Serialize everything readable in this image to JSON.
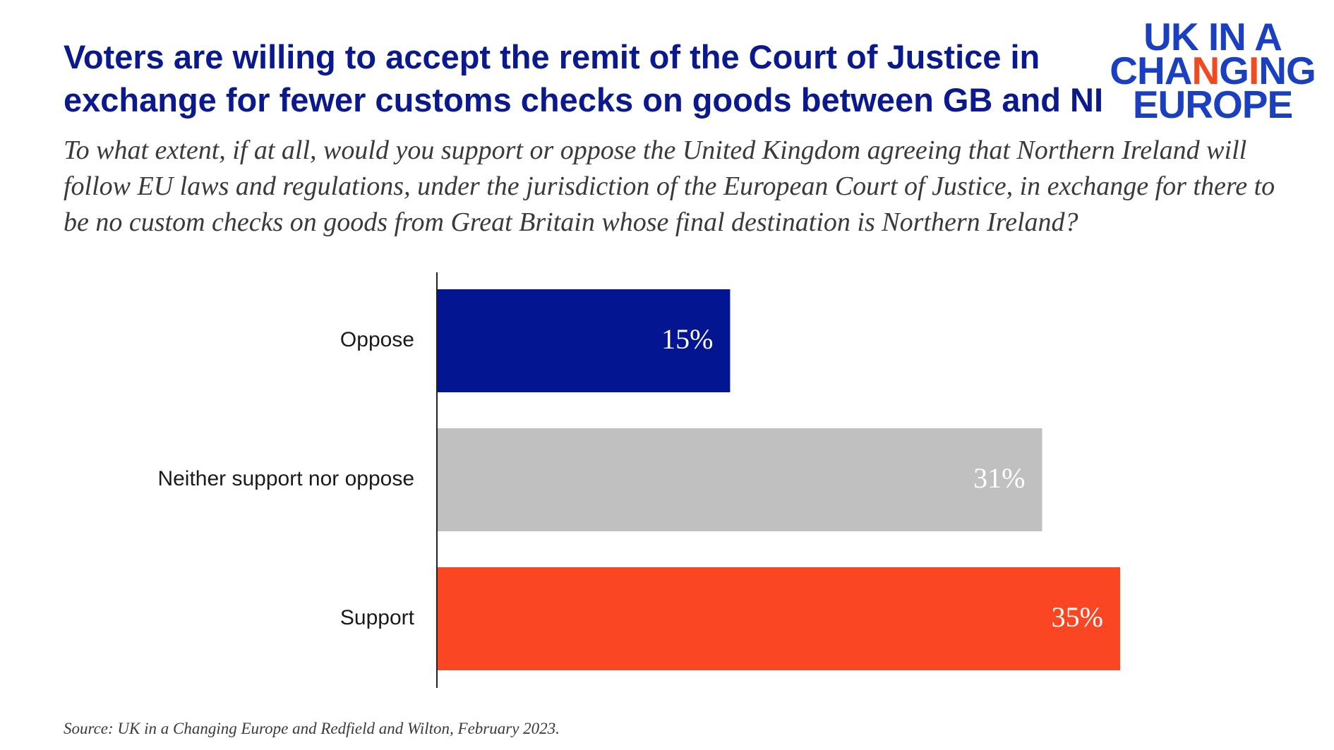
{
  "title_lines": [
    "Voters are willing to accept the remit of the Court of Justice in",
    "exchange for fewer customs checks on goods between GB and NI"
  ],
  "subtitle_lines": [
    "To what extent, if at all, would you support or oppose the United Kingdom agreeing that Northern Ireland will",
    "follow EU laws and regulations, under the jurisdiction of the European Court of Justice, in exchange for there to",
    "be no custom checks on goods from Great Britain whose final destination is Northern Ireland?"
  ],
  "logo": {
    "line1": "UK IN A",
    "line2_a": "CHA",
    "line2_b": "N",
    "line2_c": "G",
    "line2_d": "I",
    "line2_e": "NG",
    "line3": "EUROPE"
  },
  "source": "Source: UK in a Changing Europe and Redfield and Wilton, February 2023.",
  "colors": {
    "title": "#0a1a8c",
    "logo": "#1a3fc0",
    "logo_accent": "#f04a23"
  },
  "chart_data": {
    "type": "bar",
    "orientation": "horizontal",
    "categories": [
      "Oppose",
      "Neither support nor oppose",
      "Support"
    ],
    "values": [
      15,
      31,
      35
    ],
    "value_labels": [
      "15%",
      "31%",
      "35%"
    ],
    "colors": [
      "#031591",
      "#c0c0c0",
      "#fa4623"
    ],
    "unit": "%",
    "grid": false,
    "legend": "none"
  }
}
